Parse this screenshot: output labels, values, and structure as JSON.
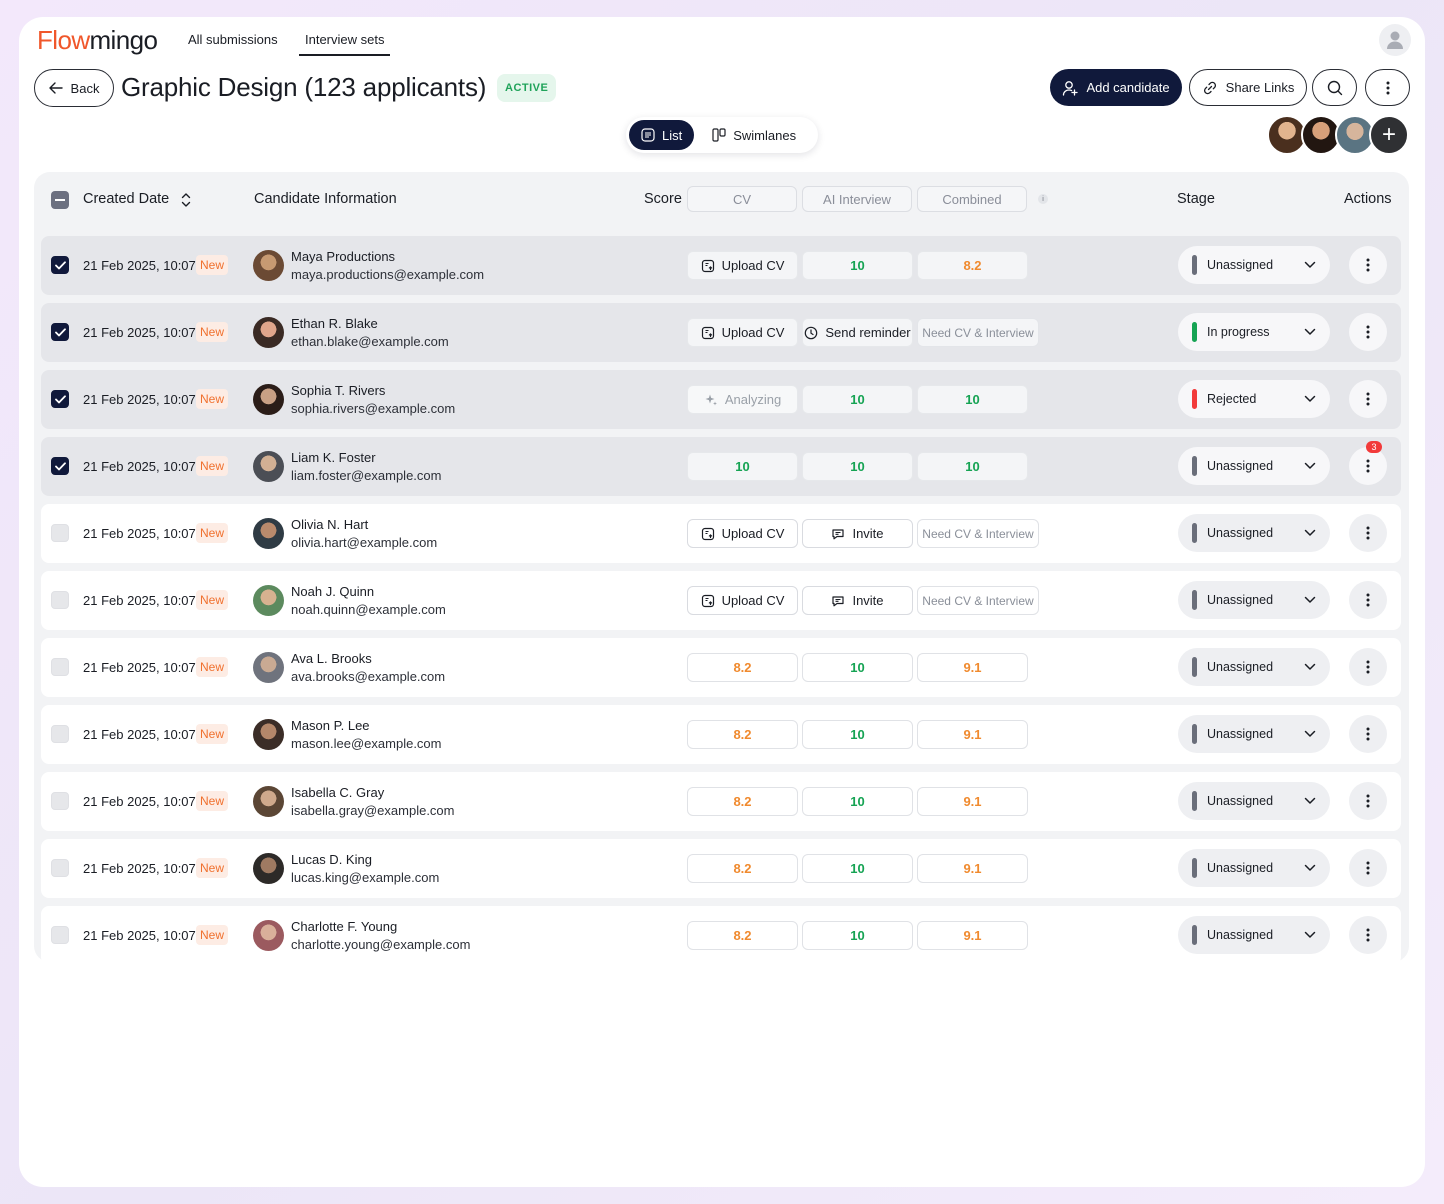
{
  "nav": {
    "logo_part1": "Flow",
    "logo_part2": "mingo",
    "tabs": [
      "All submissions",
      "Interview sets"
    ]
  },
  "header": {
    "back_label": "Back",
    "title": "Graphic Design (123 applicants)",
    "status": "ACTIVE",
    "add_candidate": "Add candidate",
    "share_links": "Share Links"
  },
  "view_toggle": {
    "list": "List",
    "swimlanes": "Swimlanes",
    "selected": "List"
  },
  "columns": {
    "created_date": "Created Date",
    "candidate_information": "Candidate Information",
    "score": "Score",
    "cv": "CV",
    "ai_interview": "AI Interview",
    "combined": "Combined",
    "info": "i",
    "stage": "Stage",
    "actions": "Actions"
  },
  "colors": {
    "brand": "#f0572b",
    "dark": "#10193b",
    "green": "#15a353",
    "orange": "#f08a2e",
    "red": "#f23a3a"
  },
  "rows": [
    {
      "selected": true,
      "date": "21 Feb 2025, 10:07",
      "badge": "New",
      "name": "Maya Productions",
      "email": "maya.productions@example.com",
      "cv": "Upload CV",
      "cv_kind": "upload",
      "ai": "10",
      "ai_kind": "green",
      "combined": "8.2",
      "combined_kind": "orange",
      "stage": "Unassigned",
      "stage_color": "#6a6e7a"
    },
    {
      "selected": true,
      "date": "21 Feb 2025, 10:07",
      "badge": "New",
      "name": "Ethan R. Blake",
      "email": "ethan.blake@example.com",
      "cv": "Upload CV",
      "cv_kind": "upload",
      "ai": "Send reminder",
      "ai_kind": "reminder",
      "combined": "Need CV & Interview",
      "combined_kind": "need",
      "stage": "In progress",
      "stage_color": "#15a353"
    },
    {
      "selected": true,
      "date": "21 Feb 2025, 10:07",
      "badge": "New",
      "name": "Sophia T. Rivers",
      "email": "sophia.rivers@example.com",
      "cv": "Analyzing",
      "cv_kind": "analyzing",
      "ai": "10",
      "ai_kind": "green",
      "combined": "10",
      "combined_kind": "green",
      "stage": "Rejected",
      "stage_color": "#f23a3a"
    },
    {
      "selected": true,
      "date": "21 Feb 2025, 10:07",
      "badge": "New",
      "name": "Liam K. Foster",
      "email": "liam.foster@example.com",
      "cv": "10",
      "cv_kind": "green",
      "ai": "10",
      "ai_kind": "green",
      "combined": "10",
      "combined_kind": "green",
      "stage": "Unassigned",
      "stage_color": "#6a6e7a",
      "notifications": "3"
    },
    {
      "selected": false,
      "date": "21 Feb 2025, 10:07",
      "badge": "New",
      "name": "Olivia N. Hart",
      "email": "olivia.hart@example.com",
      "cv": "Upload CV",
      "cv_kind": "upload",
      "ai": "Invite",
      "ai_kind": "invite",
      "combined": "Need CV & Interview",
      "combined_kind": "need",
      "stage": "Unassigned",
      "stage_color": "#6a6e7a"
    },
    {
      "selected": false,
      "date": "21 Feb 2025, 10:07",
      "badge": "New",
      "name": "Noah J. Quinn",
      "email": "noah.quinn@example.com",
      "cv": "Upload CV",
      "cv_kind": "upload",
      "ai": "Invite",
      "ai_kind": "invite",
      "combined": "Need CV & Interview",
      "combined_kind": "need",
      "stage": "Unassigned",
      "stage_color": "#6a6e7a"
    },
    {
      "selected": false,
      "date": "21 Feb 2025, 10:07",
      "badge": "New",
      "name": "Ava L. Brooks",
      "email": "ava.brooks@example.com",
      "cv": "8.2",
      "cv_kind": "orange",
      "ai": "10",
      "ai_kind": "green",
      "combined": "9.1",
      "combined_kind": "orange",
      "stage": "Unassigned",
      "stage_color": "#6a6e7a"
    },
    {
      "selected": false,
      "date": "21 Feb 2025, 10:07",
      "badge": "New",
      "name": "Mason P. Lee",
      "email": "mason.lee@example.com",
      "cv": "8.2",
      "cv_kind": "orange",
      "ai": "10",
      "ai_kind": "green",
      "combined": "9.1",
      "combined_kind": "orange",
      "stage": "Unassigned",
      "stage_color": "#6a6e7a"
    },
    {
      "selected": false,
      "date": "21 Feb 2025, 10:07",
      "badge": "New",
      "name": "Isabella C. Gray",
      "email": "isabella.gray@example.com",
      "cv": "8.2",
      "cv_kind": "orange",
      "ai": "10",
      "ai_kind": "green",
      "combined": "9.1",
      "combined_kind": "orange",
      "stage": "Unassigned",
      "stage_color": "#6a6e7a"
    },
    {
      "selected": false,
      "date": "21 Feb 2025, 10:07",
      "badge": "New",
      "name": "Lucas D. King",
      "email": "lucas.king@example.com",
      "cv": "8.2",
      "cv_kind": "orange",
      "ai": "10",
      "ai_kind": "green",
      "combined": "9.1",
      "combined_kind": "orange",
      "stage": "Unassigned",
      "stage_color": "#6a6e7a"
    },
    {
      "selected": false,
      "date": "21 Feb 2025, 10:07",
      "badge": "New",
      "name": "Charlotte F. Young",
      "email": "charlotte.young@example.com",
      "cv": "8.2",
      "cv_kind": "orange",
      "ai": "10",
      "ai_kind": "green",
      "combined": "9.1",
      "combined_kind": "orange",
      "stage": "Unassigned",
      "stage_color": "#6a6e7a"
    }
  ]
}
